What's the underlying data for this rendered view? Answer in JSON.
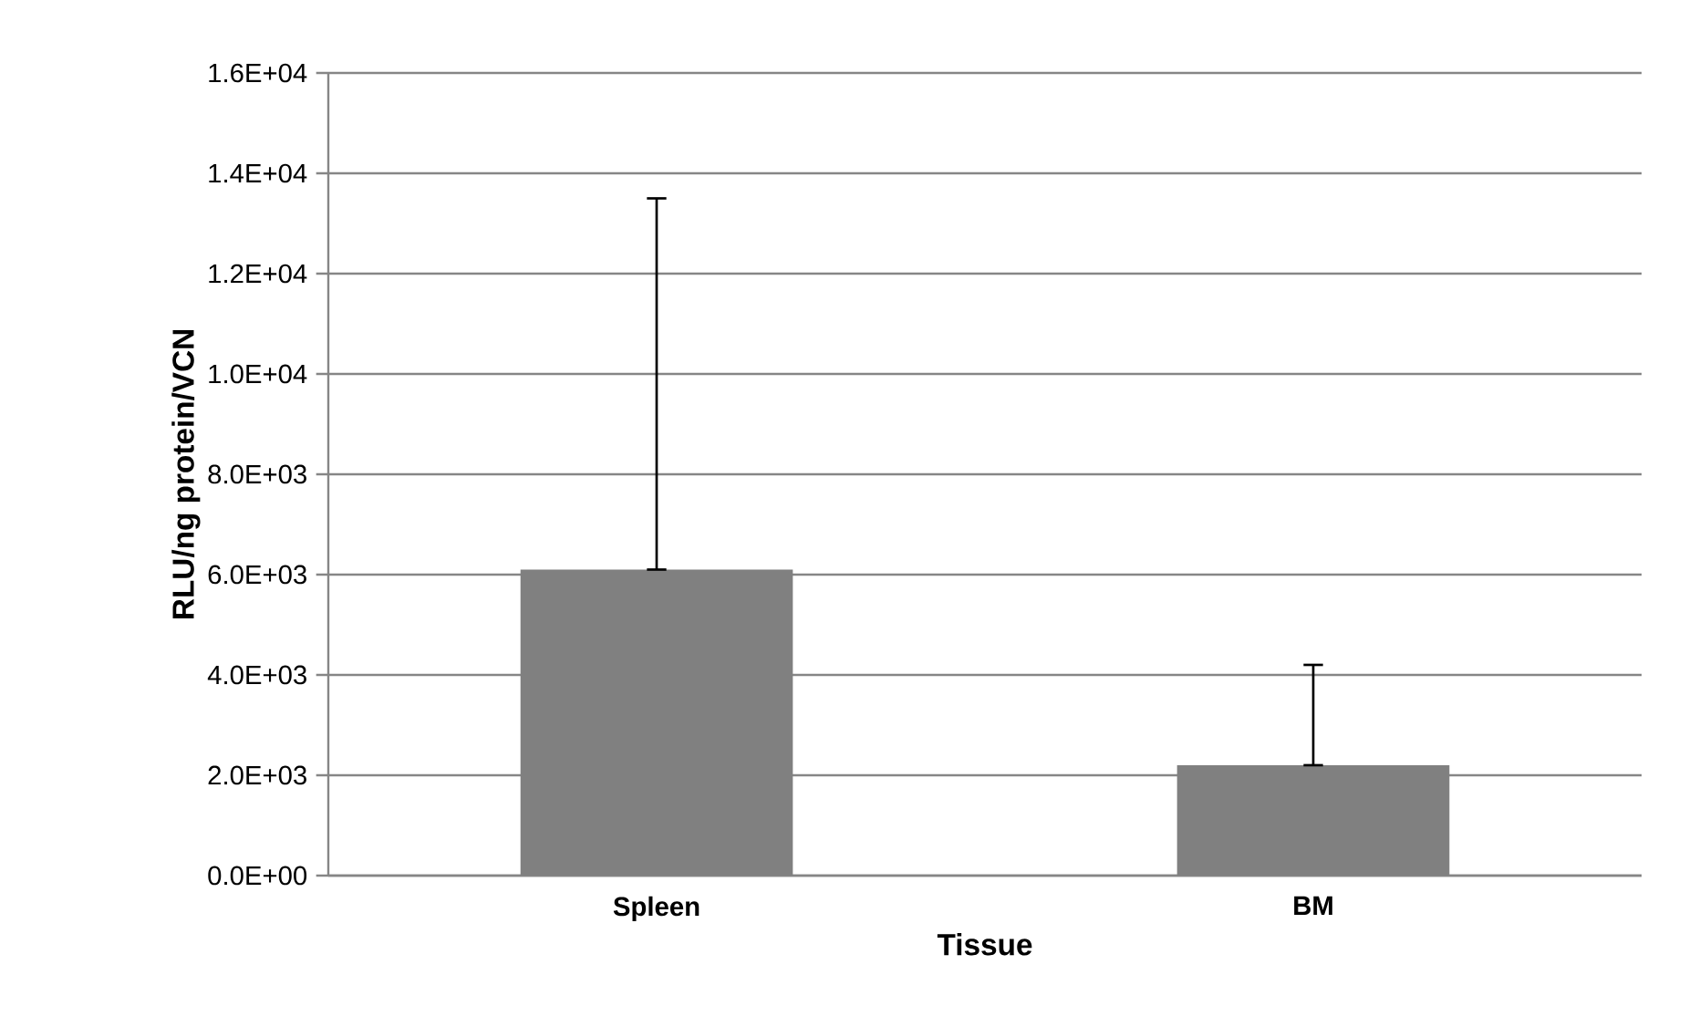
{
  "chart_data": {
    "type": "bar",
    "xlabel": "Tissue",
    "ylabel": "RLU/ng protein/VCN",
    "categories": [
      "Spleen",
      "BM"
    ],
    "values": [
      6100,
      2200
    ],
    "errors": [
      [
        6100,
        13500
      ],
      [
        2200,
        4200
      ]
    ],
    "color": "#808080",
    "ylim": [
      0,
      16000
    ],
    "yticks": [
      {
        "value": 0,
        "label": "0.0E+00"
      },
      {
        "value": 2000,
        "label": "2.0E+03"
      },
      {
        "value": 4000,
        "label": "4.0E+03"
      },
      {
        "value": 6000,
        "label": "6.0E+03"
      },
      {
        "value": 8000,
        "label": "8.0E+03"
      },
      {
        "value": 10000,
        "label": "1.0E+04"
      },
      {
        "value": 12000,
        "label": "1.2E+04"
      },
      {
        "value": 14000,
        "label": "1.4E+04"
      },
      {
        "value": 16000,
        "label": "1.6E+04"
      }
    ],
    "grid": "y"
  }
}
